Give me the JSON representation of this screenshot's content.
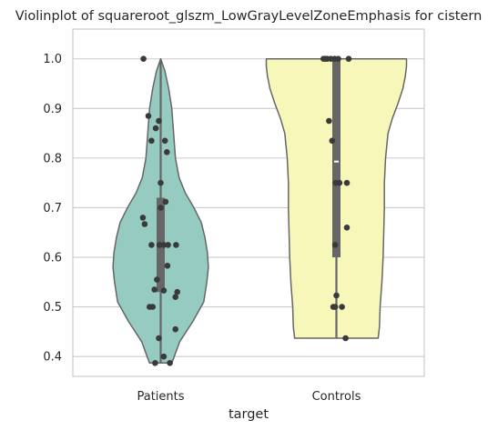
{
  "chart_data": {
    "type": "violin",
    "title": "Violinplot of squareroot_glszm_LowGrayLevelZoneEmphasis for cistern",
    "xlabel": "target",
    "ylabel": "",
    "categories": [
      "Patients",
      "Controls"
    ],
    "ylim": [
      0.36,
      1.06
    ],
    "yticks": [
      {
        "value": 0.4,
        "label": "0.4"
      },
      {
        "value": 0.5,
        "label": "0.5"
      },
      {
        "value": 0.6,
        "label": "0.6"
      },
      {
        "value": 0.7,
        "label": "0.7"
      },
      {
        "value": 0.8,
        "label": "0.8"
      },
      {
        "value": 0.9,
        "label": "0.9"
      },
      {
        "value": 1.0,
        "label": "1.0"
      }
    ],
    "grid": true,
    "series": [
      {
        "name": "Patients",
        "fill_color": "#96cbc1",
        "violin_min": 0.387,
        "violin_max": 1.0,
        "density_profile": [
          {
            "y": 0.387,
            "half_width": 0.18
          },
          {
            "y": 0.4,
            "half_width": 0.22
          },
          {
            "y": 0.43,
            "half_width": 0.31
          },
          {
            "y": 0.47,
            "half_width": 0.52
          },
          {
            "y": 0.51,
            "half_width": 0.7
          },
          {
            "y": 0.55,
            "half_width": 0.75
          },
          {
            "y": 0.58,
            "half_width": 0.775
          },
          {
            "y": 0.61,
            "half_width": 0.76
          },
          {
            "y": 0.64,
            "half_width": 0.72
          },
          {
            "y": 0.67,
            "half_width": 0.66
          },
          {
            "y": 0.7,
            "half_width": 0.54
          },
          {
            "y": 0.73,
            "half_width": 0.4
          },
          {
            "y": 0.76,
            "half_width": 0.3
          },
          {
            "y": 0.8,
            "half_width": 0.24
          },
          {
            "y": 0.85,
            "half_width": 0.21
          },
          {
            "y": 0.9,
            "half_width": 0.18
          },
          {
            "y": 0.94,
            "half_width": 0.13
          },
          {
            "y": 0.975,
            "half_width": 0.07
          },
          {
            "y": 1.0,
            "half_width": 0.0
          }
        ],
        "whisker": [
          0.387,
          1.0
        ],
        "box": [
          0.53,
          0.72
        ],
        "median": 0.625,
        "points": [
          {
            "value": 1.0,
            "jitter": -0.28
          },
          {
            "value": 0.885,
            "jitter": -0.2
          },
          {
            "value": 0.875,
            "jitter": -0.03
          },
          {
            "value": 0.86,
            "jitter": -0.08
          },
          {
            "value": 0.835,
            "jitter": -0.15
          },
          {
            "value": 0.835,
            "jitter": 0.07
          },
          {
            "value": 0.812,
            "jitter": 0.1
          },
          {
            "value": 0.75,
            "jitter": 0.0
          },
          {
            "value": 0.712,
            "jitter": 0.08
          },
          {
            "value": 0.7,
            "jitter": 0.0
          },
          {
            "value": 0.68,
            "jitter": -0.29
          },
          {
            "value": 0.667,
            "jitter": -0.26
          },
          {
            "value": 0.625,
            "jitter": -0.15
          },
          {
            "value": 0.625,
            "jitter": -0.02
          },
          {
            "value": 0.625,
            "jitter": 0.05
          },
          {
            "value": 0.625,
            "jitter": 0.12
          },
          {
            "value": 0.625,
            "jitter": 0.25
          },
          {
            "value": 0.583,
            "jitter": 0.11
          },
          {
            "value": 0.555,
            "jitter": -0.06
          },
          {
            "value": 0.535,
            "jitter": -0.1
          },
          {
            "value": 0.533,
            "jitter": 0.05
          },
          {
            "value": 0.53,
            "jitter": 0.27
          },
          {
            "value": 0.52,
            "jitter": 0.24
          },
          {
            "value": 0.5,
            "jitter": -0.18
          },
          {
            "value": 0.5,
            "jitter": -0.13
          },
          {
            "value": 0.455,
            "jitter": 0.24
          },
          {
            "value": 0.437,
            "jitter": -0.03
          },
          {
            "value": 0.4,
            "jitter": 0.05
          },
          {
            "value": 0.387,
            "jitter": -0.09
          },
          {
            "value": 0.387,
            "jitter": 0.15
          }
        ]
      },
      {
        "name": "Controls",
        "fill_color": "#f7f7ba",
        "violin_min": 0.437,
        "violin_max": 1.0,
        "density_profile": [
          {
            "y": 0.437,
            "half_width": 0.68
          },
          {
            "y": 0.46,
            "half_width": 0.7
          },
          {
            "y": 0.5,
            "half_width": 0.71
          },
          {
            "y": 0.55,
            "half_width": 0.74
          },
          {
            "y": 0.6,
            "half_width": 0.76
          },
          {
            "y": 0.65,
            "half_width": 0.77
          },
          {
            "y": 0.7,
            "half_width": 0.78
          },
          {
            "y": 0.75,
            "half_width": 0.78
          },
          {
            "y": 0.8,
            "half_width": 0.8
          },
          {
            "y": 0.85,
            "half_width": 0.84
          },
          {
            "y": 0.88,
            "half_width": 0.91
          },
          {
            "y": 0.91,
            "half_width": 1.0
          },
          {
            "y": 0.94,
            "half_width": 1.08
          },
          {
            "y": 0.965,
            "half_width": 1.12
          },
          {
            "y": 0.985,
            "half_width": 1.14
          },
          {
            "y": 1.0,
            "half_width": 1.14
          }
        ],
        "whisker": [
          0.437,
          1.0
        ],
        "box": [
          0.6,
          1.0
        ],
        "median": 0.793,
        "points": [
          {
            "value": 1.0,
            "jitter": -0.21
          },
          {
            "value": 1.0,
            "jitter": -0.18
          },
          {
            "value": 1.0,
            "jitter": -0.15
          },
          {
            "value": 1.0,
            "jitter": -0.09
          },
          {
            "value": 1.0,
            "jitter": -0.03
          },
          {
            "value": 1.0,
            "jitter": 0.03
          },
          {
            "value": 1.0,
            "jitter": 0.2
          },
          {
            "value": 0.875,
            "jitter": -0.12
          },
          {
            "value": 0.835,
            "jitter": -0.07
          },
          {
            "value": 0.75,
            "jitter": -0.01
          },
          {
            "value": 0.75,
            "jitter": 0.05
          },
          {
            "value": 0.75,
            "jitter": 0.17
          },
          {
            "value": 0.66,
            "jitter": 0.17
          },
          {
            "value": 0.625,
            "jitter": -0.02
          },
          {
            "value": 0.523,
            "jitter": 0.0
          },
          {
            "value": 0.5,
            "jitter": -0.05
          },
          {
            "value": 0.5,
            "jitter": -0.02
          },
          {
            "value": 0.5,
            "jitter": 0.09
          },
          {
            "value": 0.437,
            "jitter": 0.15
          }
        ]
      }
    ]
  }
}
